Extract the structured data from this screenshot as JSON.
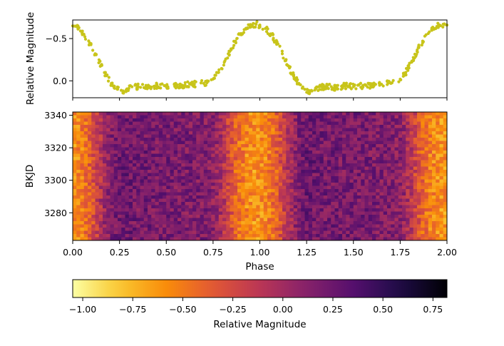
{
  "chart_data": [
    {
      "type": "scatter",
      "panel": "top",
      "ylabel": "Relative Magnitude",
      "xlim": [
        0.0,
        2.0
      ],
      "ylim": [
        0.2,
        -0.72
      ],
      "y_inverted": true,
      "yticks": [
        -0.5,
        0.0
      ],
      "ytick_labels": [
        "−0.5",
        "0.0"
      ],
      "xticks": [
        0.0,
        0.25,
        0.5,
        0.75,
        1.0,
        1.25,
        1.5,
        1.75,
        2.0
      ],
      "marker_color": "#c8c41a",
      "series": [
        {
          "x": [
            0.0,
            0.03,
            0.06,
            0.09,
            0.12,
            0.15,
            0.18,
            0.21,
            0.24,
            0.27,
            0.3,
            0.35,
            0.4,
            0.45,
            0.5,
            0.55,
            0.6,
            0.65,
            0.7,
            0.75,
            0.78,
            0.81,
            0.84,
            0.87,
            0.9,
            0.93,
            0.96,
            0.98,
            1.0,
            1.03,
            1.06,
            1.09,
            1.12,
            1.15,
            1.18,
            1.21,
            1.24,
            1.27,
            1.3,
            1.35,
            1.4,
            1.45,
            1.5,
            1.55,
            1.6,
            1.65,
            1.7,
            1.75,
            1.78,
            1.81,
            1.84,
            1.87,
            1.9,
            1.93,
            1.96,
            1.98,
            2.0
          ],
          "y": [
            -0.65,
            -0.62,
            -0.55,
            -0.45,
            -0.32,
            -0.18,
            -0.06,
            0.04,
            0.1,
            0.12,
            0.09,
            0.07,
            0.08,
            0.06,
            0.07,
            0.06,
            0.05,
            0.04,
            0.03,
            -0.02,
            -0.1,
            -0.22,
            -0.35,
            -0.47,
            -0.56,
            -0.62,
            -0.66,
            -0.67,
            -0.66,
            -0.62,
            -0.55,
            -0.45,
            -0.32,
            -0.18,
            -0.06,
            0.04,
            0.1,
            0.12,
            0.09,
            0.07,
            0.08,
            0.06,
            0.07,
            0.06,
            0.05,
            0.04,
            0.03,
            -0.02,
            -0.1,
            -0.22,
            -0.35,
            -0.47,
            -0.56,
            -0.62,
            -0.66,
            -0.67,
            -0.66
          ]
        }
      ]
    },
    {
      "type": "heatmap",
      "panel": "bottom",
      "xlabel": "Phase",
      "ylabel": "BKJD",
      "xlim": [
        0.0,
        2.0
      ],
      "ylim": [
        3263,
        3342
      ],
      "xticks": [
        0.0,
        0.25,
        0.5,
        0.75,
        1.0,
        1.25,
        1.5,
        1.75,
        2.0
      ],
      "xtick_labels": [
        "0.00",
        "0.25",
        "0.50",
        "0.75",
        "1.00",
        "1.25",
        "1.50",
        "1.75",
        "2.00"
      ],
      "yticks": [
        3280,
        3300,
        3320,
        3340
      ],
      "ytick_labels": [
        "3280",
        "3300",
        "3320",
        "3340"
      ],
      "colormap": "inferno_r",
      "value_range": [
        -1.05,
        0.82
      ],
      "profile_phase": [
        0.0,
        0.03,
        0.06,
        0.09,
        0.12,
        0.15,
        0.18,
        0.21,
        0.24,
        0.27,
        0.3,
        0.35,
        0.4,
        0.45,
        0.5,
        0.55,
        0.6,
        0.65,
        0.7,
        0.75,
        0.78,
        0.81,
        0.84,
        0.87,
        0.9,
        0.93,
        0.96,
        0.98,
        1.0
      ],
      "profile_value": [
        -0.65,
        -0.62,
        -0.55,
        -0.45,
        -0.32,
        -0.18,
        -0.06,
        0.04,
        0.1,
        0.12,
        0.09,
        0.07,
        0.08,
        0.06,
        0.07,
        0.06,
        0.05,
        0.04,
        0.03,
        -0.02,
        -0.1,
        -0.22,
        -0.35,
        -0.47,
        -0.56,
        -0.62,
        -0.66,
        -0.67,
        -0.66
      ]
    },
    {
      "type": "colorbar",
      "label": "Relative Magnitude",
      "colormap": "inferno_r",
      "range": [
        -1.05,
        0.82
      ],
      "ticks": [
        -1.0,
        -0.75,
        -0.5,
        -0.25,
        0.0,
        0.25,
        0.5,
        0.75
      ],
      "tick_labels": [
        "−1.00",
        "−0.75",
        "−0.50",
        "−0.25",
        "0.00",
        "0.25",
        "0.50",
        "0.75"
      ]
    }
  ]
}
